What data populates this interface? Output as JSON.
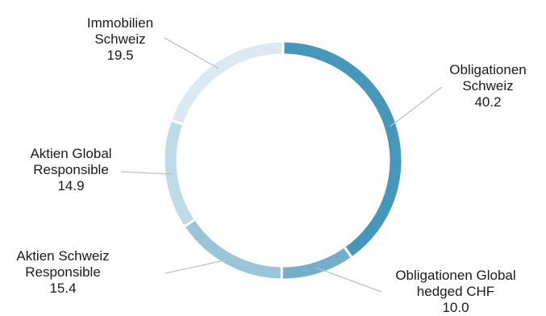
{
  "chart_data": {
    "type": "pie",
    "variant": "donut",
    "title": "",
    "legend": "none",
    "slices": [
      {
        "label_lines": [
          "Obligationen",
          "Schweiz"
        ],
        "value": 40.2,
        "value_label": "40.2",
        "color": "#4697b9"
      },
      {
        "label_lines": [
          "Obligationen Global",
          "hedged CHF"
        ],
        "value": 10.0,
        "value_label": "10.0",
        "color": "#73aeca"
      },
      {
        "label_lines": [
          "Aktien Schweiz",
          "Responsible"
        ],
        "value": 15.4,
        "value_label": "15.4",
        "color": "#9ac5d9"
      },
      {
        "label_lines": [
          "Aktien Global",
          "Responsible"
        ],
        "value": 14.9,
        "value_label": "14.9",
        "color": "#bedbe8"
      },
      {
        "label_lines": [
          "Immobilien",
          "Schweiz"
        ],
        "value": 19.5,
        "value_label": "19.5",
        "color": "#dce9f1"
      }
    ]
  }
}
